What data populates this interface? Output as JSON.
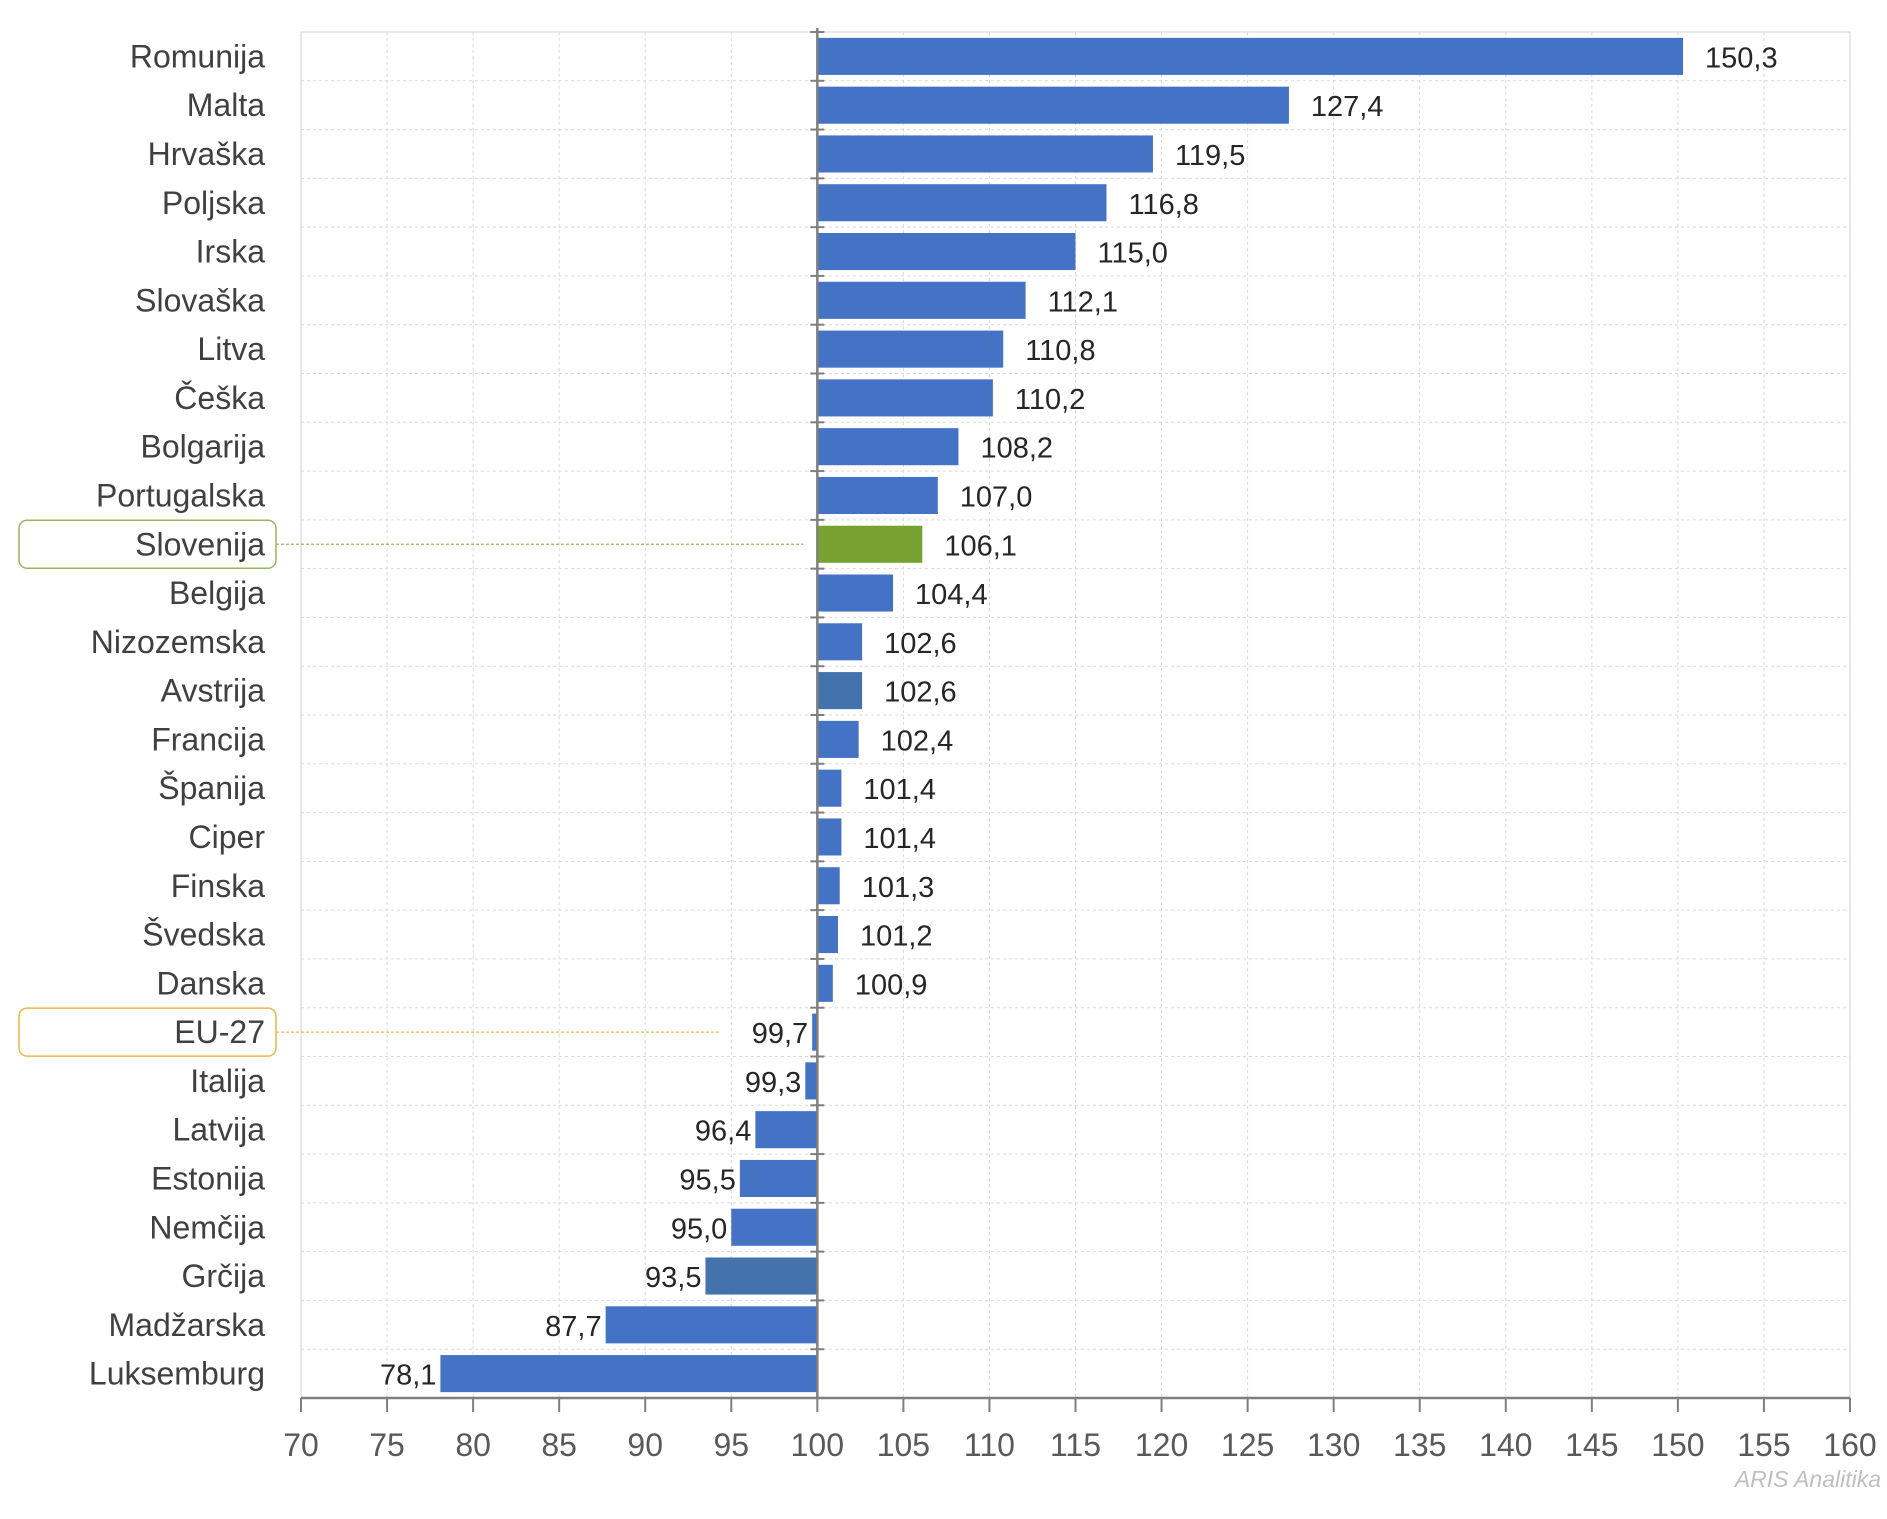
{
  "chart_data": {
    "type": "bar",
    "orientation": "horizontal",
    "baseline": 100,
    "xlim": [
      70,
      160
    ],
    "xticks": [
      70,
      75,
      80,
      85,
      90,
      95,
      100,
      105,
      110,
      115,
      120,
      125,
      130,
      135,
      140,
      145,
      150,
      155,
      160
    ],
    "grid": true,
    "colors": {
      "default": "#4472C4",
      "highlight": "#77A22F",
      "alt": "#4472AC"
    },
    "categories": [
      "Romunija",
      "Malta",
      "Hrvaška",
      "Poljska",
      "Irska",
      "Slovaška",
      "Litva",
      "Češka",
      "Bolgarija",
      "Portugalska",
      "Slovenija",
      "Belgija",
      "Nizozemska",
      "Avstrija",
      "Francija",
      "Španija",
      "Ciper",
      "Finska",
      "Švedska",
      "Danska",
      "EU-27",
      "Italija",
      "Latvija",
      "Estonija",
      "Nemčija",
      "Grčija",
      "Madžarska",
      "Luksemburg"
    ],
    "values": [
      150.3,
      127.4,
      119.5,
      116.8,
      115.0,
      112.1,
      110.8,
      110.2,
      108.2,
      107.0,
      106.1,
      104.4,
      102.6,
      102.6,
      102.4,
      101.4,
      101.4,
      101.3,
      101.2,
      100.9,
      99.7,
      99.3,
      96.4,
      95.5,
      95.0,
      93.5,
      87.7,
      78.1
    ],
    "value_labels": [
      "150,3",
      "127,4",
      "119,5",
      "116,8",
      "115,0",
      "112,1",
      "110,8",
      "110,2",
      "108,2",
      "107,0",
      "106,1",
      "104,4",
      "102,6",
      "102,6",
      "102,4",
      "101,4",
      "101,4",
      "101,3",
      "101,2",
      "100,9",
      "99,7",
      "99,3",
      "96,4",
      "95,5",
      "95,0",
      "93,5",
      "87,7",
      "78,1"
    ],
    "bar_colors": [
      "default",
      "default",
      "default",
      "default",
      "default",
      "default",
      "default",
      "default",
      "default",
      "default",
      "highlight",
      "default",
      "default",
      "alt",
      "default",
      "default",
      "default",
      "default",
      "default",
      "default",
      "default",
      "default",
      "default",
      "default",
      "default",
      "alt",
      "default",
      "default"
    ],
    "highlights": [
      {
        "category": "Slovenija",
        "color": "#9BB55A"
      },
      {
        "category": "EU-27",
        "color": "#E8B84A"
      }
    ]
  },
  "credit": "ARIS Analitika"
}
